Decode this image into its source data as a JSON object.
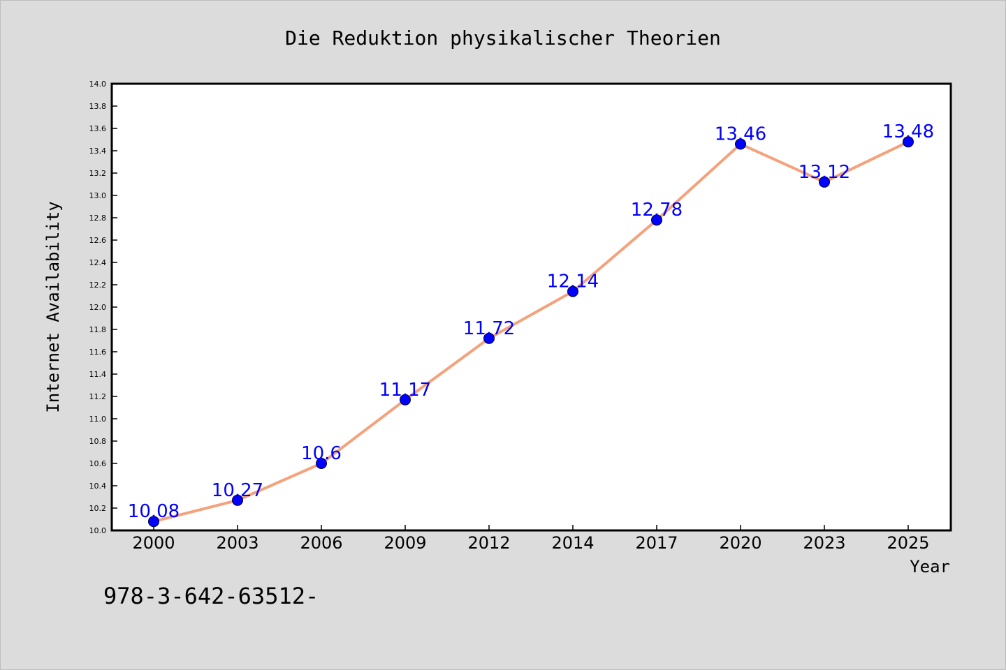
{
  "chart_data": {
    "type": "line",
    "title": "Die Reduktion physikalischer Theorien",
    "xlabel": "Year",
    "ylabel": "Internet Availability",
    "footer_text": "978-3-642-63512-",
    "categories": [
      "2000",
      "2003",
      "2006",
      "2009",
      "2012",
      "2014",
      "2017",
      "2020",
      "2023",
      "2025"
    ],
    "series": [
      {
        "values": [
          10.08,
          10.27,
          10.6,
          11.17,
          11.72,
          12.14,
          12.78,
          13.46,
          13.12,
          13.48
        ],
        "data_labels": [
          "10.08",
          "10.27",
          "10.6",
          "11.17",
          "11.72",
          "12.14",
          "12.78",
          "13.46",
          "13.12",
          "13.48"
        ],
        "line_color": "#f4a27c",
        "marker_color": "#0000ff",
        "label_color": "#0000ff"
      }
    ],
    "ylim": [
      10.0,
      14.0
    ],
    "ytick_step": 0.2,
    "ytick_labels": [
      "10.0",
      "10.2",
      "10.4",
      "10.6",
      "10.8",
      "11.0",
      "11.2",
      "11.4",
      "11.6",
      "11.8",
      "12.0",
      "12.2",
      "12.4",
      "12.6",
      "12.8",
      "13.0",
      "13.2",
      "13.4",
      "13.6",
      "13.8",
      "14.0"
    ],
    "grid": false,
    "legend": "none",
    "background_color": "#dcdcdc",
    "plot_background_color": "#ffffff"
  }
}
